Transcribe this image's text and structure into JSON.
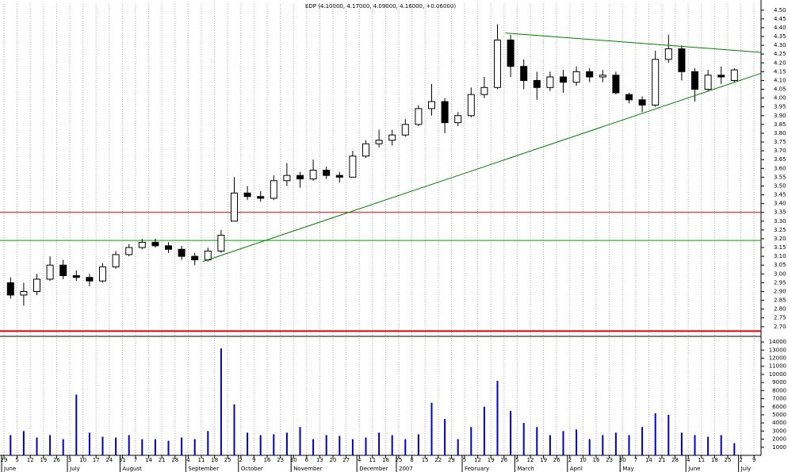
{
  "chart_data": {
    "type": "candlestick",
    "title": "EDP (4.10000, 4.17000, 4.09000, 4.16000, +0.06000)",
    "x_ticks": [
      "29",
      "5",
      "12",
      "19",
      "26",
      "3",
      "10",
      "17",
      "24",
      "31",
      "7",
      "14",
      "21",
      "28",
      "4",
      "11",
      "18",
      "25",
      "2",
      "9",
      "16",
      "23",
      "30",
      "6",
      "13",
      "20",
      "27",
      "4",
      "11",
      "18",
      "25",
      "8",
      "15",
      "22",
      "29",
      "5",
      "12",
      "19",
      "26",
      "5",
      "12",
      "19",
      "26",
      "2",
      "10",
      "16",
      "23",
      "30",
      "7",
      "14",
      "21",
      "28",
      "4",
      "11",
      "18",
      "25",
      "2",
      "9"
    ],
    "months": [
      "June",
      "July",
      "August",
      "September",
      "October",
      "November",
      "December",
      "2007",
      "February",
      "March",
      "April",
      "May",
      "June",
      "July"
    ],
    "open": [
      2.95,
      2.88,
      2.9,
      2.97,
      3.05,
      2.99,
      2.98,
      2.96,
      3.04,
      3.11,
      3.15,
      3.18,
      3.16,
      3.14,
      3.1,
      3.08,
      3.13,
      3.3,
      3.46,
      3.44,
      3.43,
      3.53,
      3.56,
      3.54,
      3.59,
      3.56,
      3.55,
      3.67,
      3.74,
      3.76,
      3.79,
      3.85,
      3.94,
      3.98,
      3.86,
      3.9,
      4.02,
      4.06,
      4.33,
      4.18,
      4.1,
      4.06,
      4.12,
      4.09,
      4.15,
      4.12,
      4.13,
      4.02,
      3.99,
      3.96,
      4.22,
      4.28,
      4.15,
      4.05,
      4.13,
      4.1
    ],
    "high": [
      2.98,
      2.95,
      3.0,
      3.1,
      3.08,
      3.02,
      3.0,
      3.06,
      3.13,
      3.17,
      3.2,
      3.2,
      3.18,
      3.16,
      3.12,
      3.15,
      3.25,
      3.55,
      3.5,
      3.47,
      3.56,
      3.63,
      3.58,
      3.65,
      3.61,
      3.58,
      3.7,
      3.76,
      3.82,
      3.82,
      3.88,
      3.96,
      4.08,
      4.0,
      3.92,
      4.06,
      4.12,
      4.42,
      4.36,
      4.22,
      4.15,
      4.15,
      4.16,
      4.18,
      4.17,
      4.16,
      4.15,
      4.03,
      4.01,
      4.27,
      4.36,
      4.3,
      4.17,
      4.16,
      4.18,
      4.17
    ],
    "low": [
      2.86,
      2.82,
      2.88,
      2.96,
      2.97,
      2.96,
      2.93,
      2.95,
      3.03,
      3.1,
      3.14,
      3.15,
      3.12,
      3.08,
      3.05,
      3.07,
      3.12,
      3.3,
      3.42,
      3.41,
      3.42,
      3.5,
      3.49,
      3.53,
      3.54,
      3.52,
      3.55,
      3.66,
      3.72,
      3.73,
      3.78,
      3.84,
      3.9,
      3.8,
      3.84,
      3.89,
      4.0,
      4.05,
      4.12,
      4.05,
      3.99,
      4.04,
      4.03,
      4.07,
      4.09,
      4.09,
      4.02,
      3.97,
      3.92,
      3.95,
      4.2,
      4.1,
      3.98,
      4.04,
      4.08,
      4.09
    ],
    "close": [
      2.88,
      2.9,
      2.97,
      3.05,
      2.99,
      2.98,
      2.96,
      3.04,
      3.11,
      3.15,
      3.18,
      3.16,
      3.14,
      3.1,
      3.08,
      3.13,
      3.22,
      3.46,
      3.44,
      3.43,
      3.53,
      3.56,
      3.54,
      3.59,
      3.56,
      3.55,
      3.67,
      3.74,
      3.76,
      3.79,
      3.85,
      3.94,
      3.98,
      3.86,
      3.9,
      4.02,
      4.06,
      4.33,
      4.18,
      4.1,
      4.06,
      4.12,
      4.09,
      4.15,
      4.12,
      4.13,
      4.03,
      3.99,
      3.96,
      4.22,
      4.28,
      4.15,
      4.05,
      4.13,
      4.12,
      4.16
    ],
    "volume": [
      2500,
      3000,
      2200,
      2500,
      2000,
      7500,
      2800,
      2300,
      2200,
      2500,
      2000,
      2000,
      1800,
      2200,
      2000,
      3000,
      13200,
      6300,
      2800,
      2500,
      2600,
      2800,
      3500,
      2000,
      2500,
      2400,
      2000,
      2200,
      2800,
      2500,
      2000,
      2600,
      6500,
      4500,
      2000,
      3500,
      6000,
      9200,
      5500,
      4000,
      3500,
      2500,
      3000,
      3200,
      2000,
      2500,
      2800,
      2500,
      3500,
      5200,
      5000,
      2800,
      2500,
      2300,
      2500,
      1500
    ],
    "ylim": [
      2.645,
      4.535
    ],
    "yticks": [
      {
        "value": 2.7,
        "label": "2.70"
      },
      {
        "value": 2.75,
        "label": "2.75"
      },
      {
        "value": 2.8,
        "label": "2.80"
      },
      {
        "value": 2.85,
        "label": "2.85"
      },
      {
        "value": 2.9,
        "label": "2.90"
      },
      {
        "value": 2.95,
        "label": "2.95"
      },
      {
        "value": 3.0,
        "label": "3.00"
      },
      {
        "value": 3.05,
        "label": "3.05"
      },
      {
        "value": 3.1,
        "label": "3.10"
      },
      {
        "value": 3.15,
        "label": "3.15"
      },
      {
        "value": 3.2,
        "label": "3.20"
      },
      {
        "value": 3.25,
        "label": "3.25"
      },
      {
        "value": 3.3,
        "label": "3.30"
      },
      {
        "value": 3.35,
        "label": "3.35"
      },
      {
        "value": 3.4,
        "label": "3.40"
      },
      {
        "value": 3.45,
        "label": "3.45"
      },
      {
        "value": 3.5,
        "label": "3.50"
      },
      {
        "value": 3.55,
        "label": "3.55"
      },
      {
        "value": 3.6,
        "label": "3.60"
      },
      {
        "value": 3.65,
        "label": "3.65"
      },
      {
        "value": 3.7,
        "label": "3.70"
      },
      {
        "value": 3.75,
        "label": "3.75"
      },
      {
        "value": 3.8,
        "label": "3.80"
      },
      {
        "value": 3.85,
        "label": "3.85"
      },
      {
        "value": 3.9,
        "label": "3.90"
      },
      {
        "value": 3.95,
        "label": "3.95"
      },
      {
        "value": 4.0,
        "label": "4.00"
      },
      {
        "value": 4.05,
        "label": "4.05"
      },
      {
        "value": 4.1,
        "label": "4.10"
      },
      {
        "value": 4.15,
        "label": "4.15"
      },
      {
        "value": 4.2,
        "label": "4.20"
      },
      {
        "value": 4.25,
        "label": "4.25"
      },
      {
        "value": 4.3,
        "label": "4.30"
      },
      {
        "value": 4.35,
        "label": "4.35"
      },
      {
        "value": 4.4,
        "label": "4.40"
      },
      {
        "value": 4.45,
        "label": "4.45"
      },
      {
        "value": 4.5,
        "label": "4.50"
      }
    ],
    "y2lim": [
      0,
      14500
    ],
    "y2ticks": [
      1000,
      2000,
      3000,
      4000,
      5000,
      6000,
      7000,
      8000,
      9000,
      10000,
      11000,
      12000,
      13000,
      14000
    ],
    "hlines": [
      {
        "value": 3.35,
        "color": "#e00000"
      },
      {
        "value": 3.19,
        "color": "#00a000"
      },
      {
        "value": 2.675,
        "color": "#e00000"
      }
    ],
    "trendlines": [
      {
        "x": [
          15.1,
          57.5
        ],
        "y": [
          3.07,
          4.14
        ],
        "color": "#008000"
      },
      {
        "x": [
          38.1,
          57.5
        ],
        "y": [
          4.37,
          4.26
        ],
        "color": "#008000"
      }
    ],
    "grid": true
  }
}
